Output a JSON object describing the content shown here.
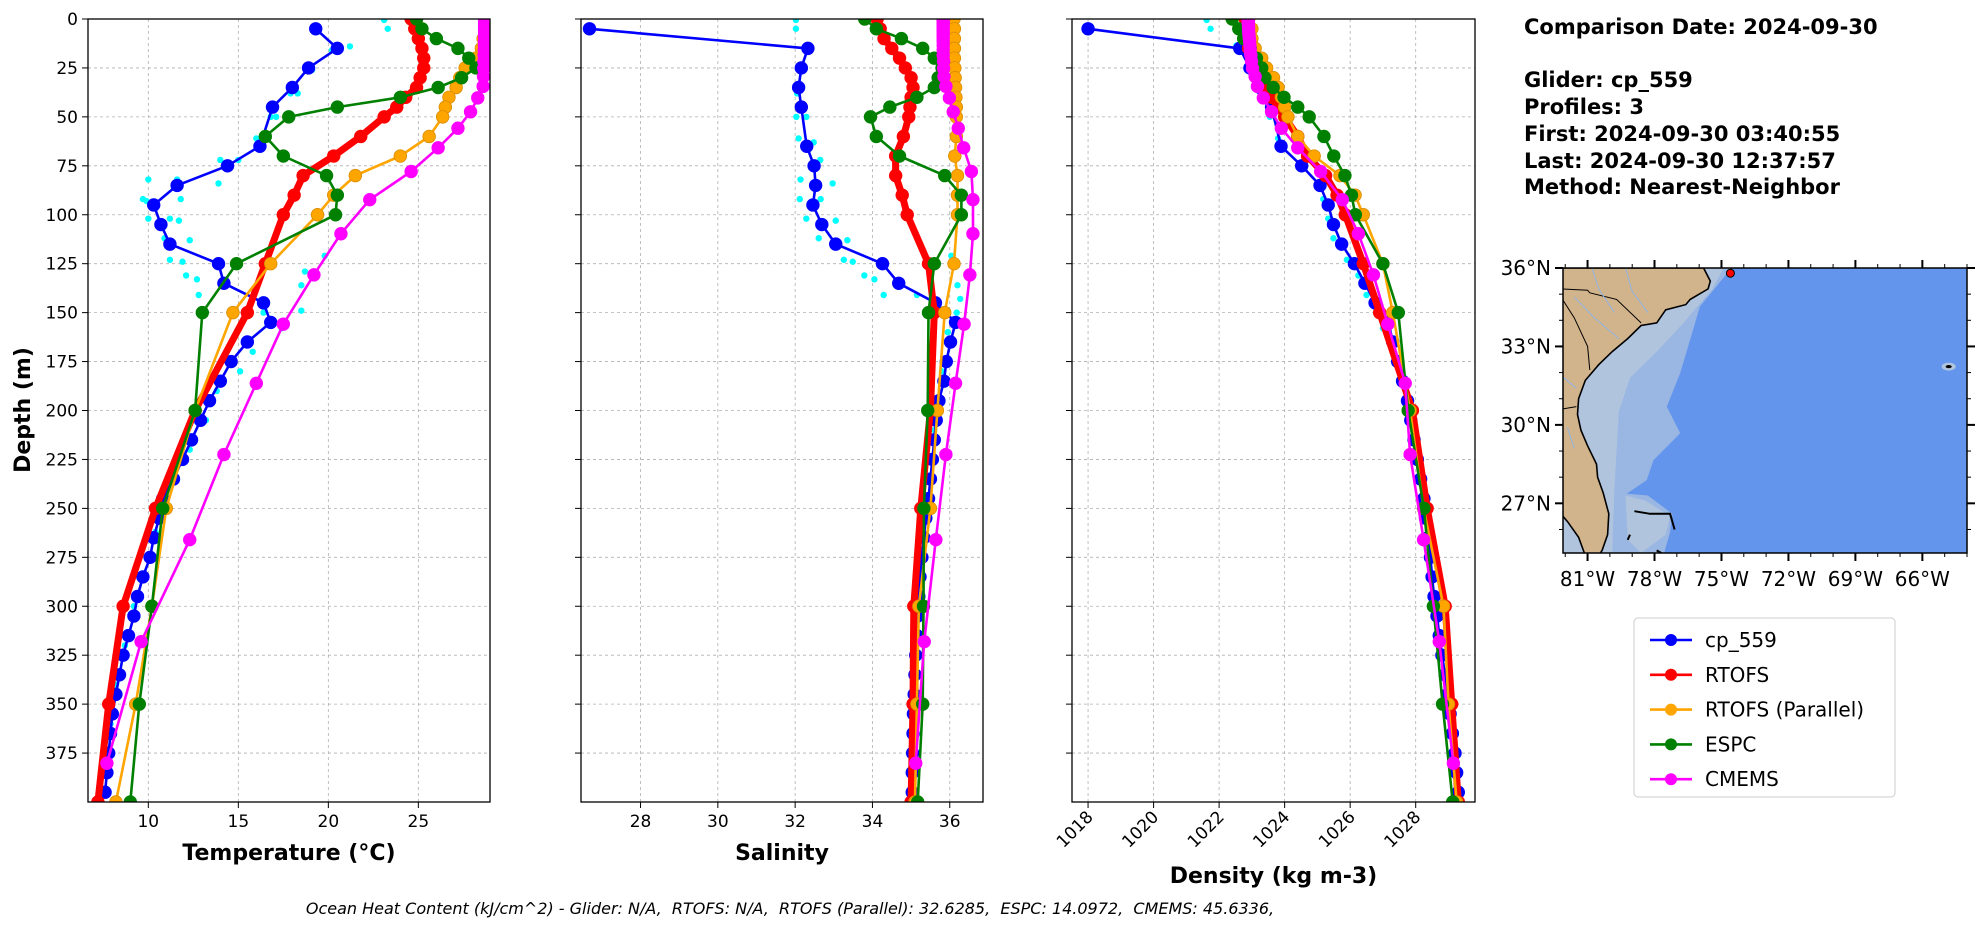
{
  "info": {
    "comparison_date": "Comparison Date: 2024-09-30",
    "glider": "Glider: cp_559",
    "profiles": "Profiles: 3",
    "first": "First: 2024-09-30 03:40:55",
    "last": "Last: 2024-09-30 12:37:57",
    "method": "Method: Nearest-Neighbor"
  },
  "caption": "Ocean Heat Content (kJ/cm^2) - Glider: N/A,  RTOFS: N/A,  RTOFS (Parallel): 32.6285,  ESPC: 14.0972,  CMEMS: 45.6336,",
  "chart_data": {
    "type": "line",
    "ylabel": "Depth (m)",
    "ylim": [
      400,
      0
    ],
    "yticks": [
      0,
      25,
      50,
      75,
      100,
      125,
      150,
      175,
      200,
      225,
      250,
      275,
      300,
      325,
      350,
      375
    ],
    "grid": true,
    "legend_position": "right",
    "panels": [
      {
        "key": "temperature",
        "xlabel": "Temperature (°C)",
        "xlim": [
          6.65,
          28.98
        ],
        "xticks": [
          10,
          15,
          20,
          25
        ]
      },
      {
        "key": "salinity",
        "xlabel": "Salinity",
        "xlim": [
          26.46,
          36.86
        ],
        "xticks": [
          28,
          30,
          32,
          34,
          36
        ]
      },
      {
        "key": "density",
        "xlabel": "Density (kg m-3)",
        "xlim": [
          1017.51,
          1029.81
        ],
        "xticks": [
          1018,
          1020,
          1022,
          1024,
          1026,
          1028
        ]
      }
    ],
    "series": [
      {
        "name": "cp_559",
        "color": "#0000ff",
        "depth": [
          5,
          15,
          25,
          35,
          45,
          65,
          75,
          85,
          95,
          105,
          115,
          125,
          135,
          145,
          155,
          165,
          175,
          185,
          195,
          205,
          215,
          225,
          235,
          245,
          255,
          265,
          275,
          285,
          295,
          305,
          315,
          325,
          335,
          345,
          355,
          365,
          375,
          385,
          395
        ],
        "temperature": [
          19.3,
          20.5,
          18.9,
          18.0,
          16.9,
          16.2,
          14.4,
          11.6,
          10.3,
          10.7,
          11.2,
          13.9,
          14.2,
          16.4,
          16.8,
          15.5,
          14.6,
          14.0,
          13.4,
          12.9,
          12.4,
          11.9,
          11.4,
          10.8,
          10.6,
          10.3,
          10.1,
          9.7,
          9.4,
          9.2,
          8.9,
          8.6,
          8.4,
          8.2,
          8.0,
          7.9,
          7.8,
          7.7,
          7.6
        ],
        "salinity": [
          26.68,
          32.33,
          32.16,
          32.09,
          32.16,
          32.3,
          32.49,
          32.53,
          32.46,
          32.69,
          33.05,
          34.26,
          34.68,
          35.63,
          36.15,
          36.02,
          35.91,
          35.85,
          35.72,
          35.65,
          35.6,
          35.55,
          35.5,
          35.45,
          35.38,
          35.33,
          35.28,
          35.23,
          35.2,
          35.17,
          35.15,
          35.12,
          35.1,
          35.08,
          35.06,
          35.05,
          35.04,
          35.03,
          35.03
        ],
        "density": [
          1018.0,
          1022.63,
          1022.94,
          1023.25,
          1023.6,
          1023.89,
          1024.52,
          1025.08,
          1025.33,
          1025.49,
          1025.74,
          1026.13,
          1026.45,
          1026.76,
          1027.17,
          1027.3,
          1027.45,
          1027.6,
          1027.75,
          1027.85,
          1027.95,
          1028.05,
          1028.15,
          1028.25,
          1028.3,
          1028.38,
          1028.45,
          1028.5,
          1028.56,
          1028.65,
          1028.72,
          1028.8,
          1028.9,
          1028.97,
          1029.05,
          1029.12,
          1029.2,
          1029.25,
          1029.3
        ]
      },
      {
        "name": "RTOFS",
        "color": "#ff0000",
        "depth": [
          0,
          5,
          10,
          15,
          20,
          25,
          30,
          35,
          40,
          45,
          50,
          60,
          70,
          80,
          90,
          100,
          125,
          150,
          200,
          250,
          300,
          350,
          400
        ],
        "temperature": [
          24.6,
          24.8,
          25.0,
          25.2,
          25.3,
          25.3,
          25.1,
          24.9,
          24.3,
          23.8,
          23.1,
          21.8,
          20.3,
          18.6,
          18.1,
          17.5,
          16.5,
          15.5,
          12.6,
          10.4,
          8.6,
          7.8,
          7.2
        ],
        "salinity": [
          34.12,
          34.2,
          34.3,
          34.5,
          34.7,
          34.85,
          35.0,
          35.05,
          35.0,
          34.97,
          34.94,
          34.8,
          34.6,
          34.6,
          34.77,
          34.9,
          35.45,
          35.6,
          35.5,
          35.25,
          35.07,
          35.05,
          35.0
        ],
        "density": [
          1022.8,
          1022.8,
          1022.85,
          1022.9,
          1023.0,
          1023.1,
          1023.2,
          1023.4,
          1023.6,
          1023.8,
          1024.0,
          1024.4,
          1024.7,
          1025.25,
          1025.6,
          1025.85,
          1026.4,
          1026.9,
          1027.9,
          1028.35,
          1028.9,
          1029.1,
          1029.3
        ]
      },
      {
        "name": "RTOFS (Parallel)",
        "color": "#ffa500",
        "depth": [
          0,
          5,
          10,
          15,
          20,
          25,
          30,
          35,
          40,
          45,
          50,
          60,
          70,
          80,
          90,
          100,
          125,
          150,
          200,
          250,
          300,
          350,
          400
        ],
        "temperature": [
          28.7,
          28.7,
          28.6,
          28.5,
          28.2,
          27.6,
          27.3,
          27.1,
          26.7,
          26.5,
          26.35,
          25.6,
          24.0,
          21.5,
          20.3,
          19.4,
          16.8,
          14.7,
          12.6,
          11.0,
          10.2,
          9.3,
          8.2
        ],
        "salinity": [
          36.11,
          36.12,
          36.12,
          36.12,
          36.12,
          36.13,
          36.14,
          36.15,
          36.16,
          36.17,
          36.17,
          36.17,
          36.13,
          36.2,
          36.2,
          36.2,
          36.11,
          35.87,
          35.68,
          35.5,
          35.2,
          35.15,
          35.1
        ],
        "density": [
          1022.9,
          1023.0,
          1023.0,
          1023.1,
          1023.3,
          1023.45,
          1023.66,
          1023.8,
          1023.9,
          1024.0,
          1024.1,
          1024.4,
          1024.9,
          1025.69,
          1026.15,
          1026.4,
          1027.0,
          1027.3,
          1027.83,
          1028.24,
          1028.85,
          1029.0,
          1029.25
        ]
      },
      {
        "name": "ESPC",
        "color": "#008000",
        "depth": [
          0,
          5,
          10,
          15,
          20,
          25,
          30,
          35,
          40,
          45,
          50,
          60,
          70,
          80,
          90,
          100,
          125,
          150,
          200,
          250,
          300,
          350,
          400
        ],
        "temperature": [
          24.9,
          25.2,
          26.0,
          27.2,
          27.8,
          28.2,
          27.4,
          26.1,
          24.0,
          20.5,
          17.8,
          16.5,
          17.5,
          19.9,
          20.5,
          20.4,
          14.9,
          13.0,
          12.6,
          10.8,
          10.2,
          9.5,
          9.0
        ],
        "salinity": [
          33.8,
          34.1,
          34.75,
          35.3,
          35.6,
          35.8,
          35.7,
          35.6,
          35.15,
          34.45,
          33.95,
          34.1,
          34.7,
          35.87,
          36.3,
          36.3,
          35.6,
          35.45,
          35.43,
          35.33,
          35.32,
          35.3,
          35.17
        ],
        "density": [
          1022.4,
          1022.6,
          1022.75,
          1022.95,
          1023.14,
          1023.3,
          1023.4,
          1023.65,
          1023.98,
          1024.4,
          1024.75,
          1025.2,
          1025.5,
          1025.84,
          1026.04,
          1026.16,
          1027.0,
          1027.47,
          1027.77,
          1028.25,
          1028.54,
          1028.82,
          1029.13
        ]
      },
      {
        "name": "CMEMS",
        "color": "#ff00ff",
        "depth": [
          0.5,
          1.5,
          2.6,
          3.8,
          5,
          6.4,
          7.9,
          9.6,
          11.4,
          13.5,
          15.8,
          18.5,
          21.6,
          25.2,
          29.4,
          34.4,
          40.3,
          47.4,
          55.8,
          65.8,
          77.9,
          92.3,
          109.7,
          130.7,
          155.9,
          186.1,
          222.5,
          266.0,
          318.1,
          380.2
        ],
        "temperature": [
          28.68,
          28.68,
          28.68,
          28.68,
          28.68,
          28.68,
          28.68,
          28.68,
          28.67,
          28.67,
          28.66,
          28.65,
          28.64,
          28.63,
          28.62,
          28.6,
          28.3,
          27.9,
          27.2,
          26.1,
          24.6,
          22.3,
          20.7,
          19.2,
          17.5,
          16.0,
          14.2,
          12.3,
          9.6,
          7.7
        ],
        "salinity": [
          35.83,
          35.83,
          35.83,
          35.83,
          35.83,
          35.83,
          35.83,
          35.83,
          35.83,
          35.83,
          35.83,
          35.83,
          35.84,
          35.84,
          35.85,
          35.9,
          35.99,
          36.09,
          36.22,
          36.36,
          36.56,
          36.6,
          36.6,
          36.52,
          36.37,
          36.15,
          35.9,
          35.64,
          35.34,
          35.12
        ],
        "density": [
          1022.89,
          1022.89,
          1022.89,
          1022.9,
          1022.9,
          1022.9,
          1022.91,
          1022.92,
          1022.93,
          1022.94,
          1022.95,
          1022.97,
          1022.99,
          1023.02,
          1023.1,
          1023.17,
          1023.35,
          1023.6,
          1023.9,
          1024.4,
          1025.1,
          1025.76,
          1026.25,
          1026.71,
          1027.15,
          1027.68,
          1027.83,
          1028.24,
          1028.72,
          1029.15
        ]
      }
    ],
    "glider_profiles": {
      "color": "#00ffff",
      "temperature": [
        [
          23.1,
          0.5
        ],
        [
          23.3,
          5
        ],
        [
          20.2,
          16
        ],
        [
          21.2,
          14
        ],
        [
          19.1,
          26
        ],
        [
          17.9,
          38
        ],
        [
          18.3,
          38
        ],
        [
          16.8,
          50
        ],
        [
          17.1,
          50
        ],
        [
          16.0,
          61
        ],
        [
          14.0,
          72
        ],
        [
          15.0,
          72
        ],
        [
          10.0,
          82
        ],
        [
          11.6,
          82
        ],
        [
          13.9,
          84
        ],
        [
          11.8,
          92
        ],
        [
          9.7,
          92
        ],
        [
          9.9,
          93
        ],
        [
          10.0,
          102
        ],
        [
          11.2,
          102
        ],
        [
          11.7,
          103
        ],
        [
          10.9,
          112
        ],
        [
          12.3,
          113
        ],
        [
          11.2,
          123
        ],
        [
          11.9,
          124
        ],
        [
          12.1,
          131
        ],
        [
          12.7,
          133
        ],
        [
          12.8,
          141
        ],
        [
          16.4,
          150
        ],
        [
          18.5,
          149
        ],
        [
          18.7,
          129
        ],
        [
          19.8,
          121
        ],
        [
          18.5,
          136
        ],
        [
          17.4,
          158
        ],
        [
          15.8,
          170
        ],
        [
          15.1,
          180
        ],
        [
          13.8,
          190
        ],
        [
          13.2,
          205
        ],
        [
          12.3,
          220
        ],
        [
          11.0,
          240
        ],
        [
          10.4,
          262
        ],
        [
          9.8,
          284
        ],
        [
          9.2,
          300
        ],
        [
          8.7,
          320
        ],
        [
          8.2,
          340
        ],
        [
          7.9,
          360
        ],
        [
          7.7,
          380
        ]
      ],
      "salinity": [
        [
          32.02,
          0.5
        ],
        [
          32.02,
          5
        ],
        [
          32.05,
          38
        ],
        [
          32.03,
          50
        ],
        [
          32.29,
          50
        ],
        [
          32.09,
          61
        ],
        [
          32.48,
          63
        ],
        [
          32.65,
          72
        ],
        [
          32.14,
          82
        ],
        [
          32.97,
          84
        ],
        [
          32.12,
          92
        ],
        [
          32.66,
          92
        ],
        [
          32.29,
          102
        ],
        [
          33.05,
          103
        ],
        [
          32.61,
          112
        ],
        [
          33.35,
          113
        ],
        [
          33.26,
          123
        ],
        [
          33.49,
          124
        ],
        [
          33.79,
          131
        ],
        [
          34.05,
          133
        ],
        [
          34.29,
          141
        ],
        [
          35.15,
          141
        ],
        [
          36.2,
          136
        ],
        [
          36.27,
          143
        ],
        [
          36.18,
          150
        ],
        [
          36.04,
          121
        ],
        [
          35.95,
          160
        ],
        [
          35.8,
          180
        ],
        [
          35.6,
          210
        ]
      ],
      "density": [
        [
          1021.62,
          0.5
        ],
        [
          1021.74,
          5
        ],
        [
          1022.53,
          13.5
        ],
        [
          1023.55,
          50
        ],
        [
          1023.8,
          61
        ],
        [
          1025.18,
          92
        ],
        [
          1025.33,
          102
        ],
        [
          1025.49,
          112
        ],
        [
          1025.9,
          123
        ],
        [
          1026.25,
          131
        ],
        [
          1026.5,
          141
        ],
        [
          1026.81,
          150
        ],
        [
          1027.0,
          158
        ]
      ]
    }
  },
  "map": {
    "extent": [
      -82.1,
      -64.0,
      25.1,
      36.0
    ],
    "lat_ticks": [
      36,
      33,
      30,
      27
    ],
    "lat_tick_labels": [
      "36°N",
      "33°N",
      "30°N",
      "27°N"
    ],
    "lon_ticks": [
      -81,
      -78,
      -75,
      -72,
      -69,
      -66
    ],
    "lon_tick_labels": [
      "81°W",
      "78°W",
      "75°W",
      "72°W",
      "69°W",
      "66°W"
    ],
    "glider_position": [
      -74.6,
      35.8
    ],
    "colors": {
      "land": "#d2b48c",
      "inner_shelf": "#b0c4de",
      "outer_shelf": "#9ab6e2",
      "ocean": "#6495ed",
      "marker": "#ff0000"
    }
  }
}
